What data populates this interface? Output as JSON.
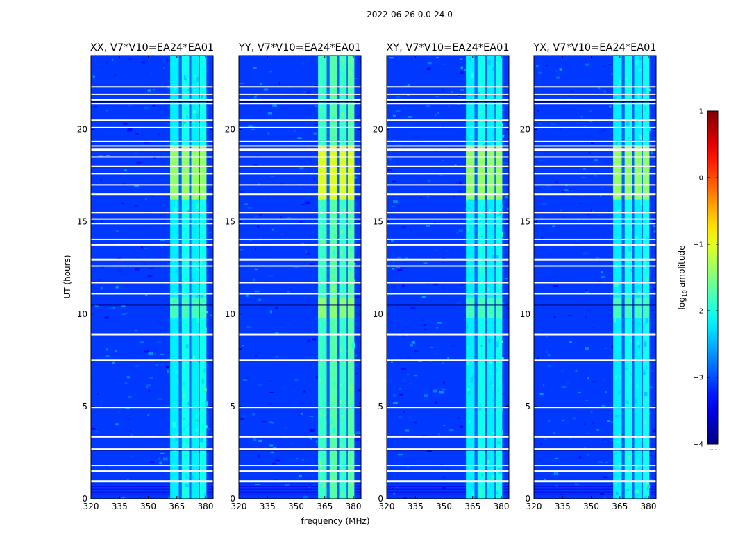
{
  "suptitle": "2022-06-26 0.0-24.0",
  "chart_data": {
    "type": "heatmap",
    "figure_title": "2022-06-26 0.0-24.0",
    "panels": [
      {
        "title": "XX, V7*V10=EA24*EA01"
      },
      {
        "title": "YY, V7*V10=EA24*EA01"
      },
      {
        "title": "XY, V7*V10=EA24*EA01"
      },
      {
        "title": "YX, V7*V10=EA24*EA01"
      }
    ],
    "xlabel": "frequency (MHz)",
    "ylabel": "UT (hours)",
    "xlim": [
      320,
      384
    ],
    "ylim": [
      0,
      24
    ],
    "xticks": [
      320,
      335,
      350,
      365,
      380
    ],
    "yticks": [
      0,
      5,
      10,
      15,
      20
    ],
    "colorbar": {
      "label": "log10 amplitude",
      "label_main": "log",
      "label_sub": "10",
      "label_rest": " amplitude",
      "range": [
        -4,
        1
      ],
      "ticks": [
        -4,
        -3,
        -2,
        -1,
        0,
        1
      ],
      "tick_labels": [
        "−4",
        "−3",
        "−2",
        "−1",
        "0",
        "1"
      ],
      "colormap": "jet",
      "under_label": "....."
    },
    "rfi_frequency_bands_mhz": [
      [
        361.5,
        366
      ],
      [
        367.5,
        371.5
      ],
      [
        372.5,
        376.5
      ],
      [
        377,
        380.5
      ]
    ],
    "blank_time_rows_hours": [
      0.95,
      1.5,
      1.8,
      2.7,
      3.35,
      4.95,
      7.5,
      8.9,
      11.1,
      11.7,
      12.6,
      12.95,
      13.75,
      14.05,
      14.9,
      15.15,
      15.5,
      16.5,
      17.0,
      17.6,
      18.0,
      18.5,
      18.9,
      19.1,
      19.35,
      20.1,
      20.5,
      21.4,
      21.6,
      21.9,
      22.3
    ],
    "bright_time_ranges_hours": [
      [
        9.8,
        10.9
      ],
      [
        16.2,
        19.1
      ]
    ]
  }
}
